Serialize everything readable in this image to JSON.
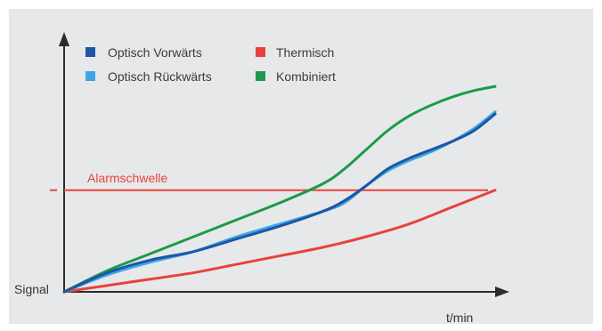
{
  "chart_data": {
    "type": "line",
    "title": "",
    "ylabel": "Signal",
    "xlabel": "t/min",
    "xlim": [
      0,
      100
    ],
    "ylim": [
      0,
      100
    ],
    "grid": false,
    "legend_position": "top-left",
    "threshold": {
      "label": "Alarmschwelle",
      "value": 48,
      "color": "#e8423c"
    },
    "series": [
      {
        "name": "Optisch Vorwärts",
        "color": "#1f56a6",
        "x": [
          0,
          10,
          20,
          30,
          40,
          50,
          60,
          65,
          70,
          75,
          80,
          85,
          90,
          95,
          100
        ],
        "y": [
          0,
          9,
          15,
          19,
          25,
          31,
          38,
          43,
          50,
          58,
          63,
          67,
          71,
          76,
          84
        ]
      },
      {
        "name": "Optisch Rückwärts",
        "color": "#3fa6e6",
        "x": [
          0,
          10,
          20,
          30,
          40,
          50,
          60,
          65,
          70,
          75,
          80,
          85,
          90,
          95,
          100
        ],
        "y": [
          0,
          8,
          14,
          19,
          26,
          32,
          38,
          42,
          50,
          57,
          62,
          66,
          71,
          77,
          85
        ]
      },
      {
        "name": "Thermisch",
        "color": "#e8423c",
        "x": [
          0,
          10,
          20,
          30,
          40,
          50,
          60,
          70,
          80,
          90,
          100
        ],
        "y": [
          0,
          3,
          6,
          9,
          13,
          17,
          21,
          26,
          32,
          40,
          48
        ]
      },
      {
        "name": "Kombiniert",
        "color": "#1f9a4a",
        "x": [
          0,
          10,
          20,
          30,
          40,
          50,
          60,
          65,
          70,
          75,
          80,
          85,
          90,
          95,
          100
        ],
        "y": [
          0,
          10,
          18,
          26,
          34,
          42,
          51,
          58,
          67,
          76,
          83,
          88,
          92,
          95,
          97
        ]
      }
    ]
  }
}
